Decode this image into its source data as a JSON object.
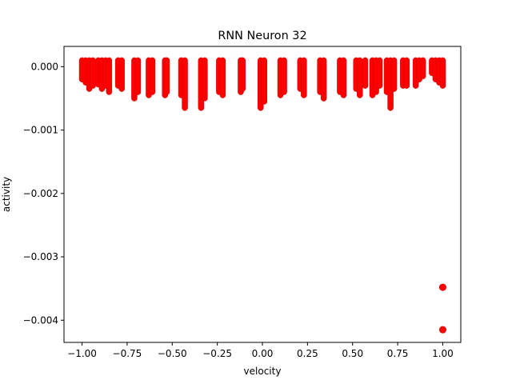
{
  "chart_data": {
    "type": "scatter",
    "title": "RNN Neuron 32",
    "xlabel": "velocity",
    "ylabel": "activity",
    "xlim": [
      -1.1,
      1.1
    ],
    "ylim": [
      -0.00435,
      0.00032
    ],
    "grid": false,
    "marker_color": "#ff0000",
    "x_ticks": [
      -1.0,
      -0.75,
      -0.5,
      -0.25,
      0.0,
      0.25,
      0.5,
      0.75,
      1.0
    ],
    "x_tick_labels": [
      "−1.00",
      "−0.75",
      "−0.50",
      "−0.25",
      "0.00",
      "0.25",
      "0.50",
      "0.75",
      "1.00"
    ],
    "y_ticks": [
      0.0,
      -0.001,
      -0.002,
      -0.003,
      -0.004
    ],
    "y_tick_labels": [
      "0.000",
      "−0.001",
      "−0.002",
      "−0.003",
      "−0.004"
    ],
    "columns": [
      {
        "x": -1.0,
        "y_top": 0.0001,
        "y_bottom": -0.0002
      },
      {
        "x": -0.98,
        "y_top": 0.0001,
        "y_bottom": -0.00025
      },
      {
        "x": -0.96,
        "y_top": 0.0001,
        "y_bottom": -0.00035
      },
      {
        "x": -0.94,
        "y_top": 0.0001,
        "y_bottom": -0.0003
      },
      {
        "x": -0.91,
        "y_top": 0.0001,
        "y_bottom": -0.00028
      },
      {
        "x": -0.89,
        "y_top": 0.0001,
        "y_bottom": -0.00035
      },
      {
        "x": -0.87,
        "y_top": 0.0001,
        "y_bottom": -0.0003
      },
      {
        "x": -0.85,
        "y_top": 0.0001,
        "y_bottom": -0.0004
      },
      {
        "x": -0.8,
        "y_top": 0.0001,
        "y_bottom": -0.0003
      },
      {
        "x": -0.78,
        "y_top": 0.0001,
        "y_bottom": -0.00035
      },
      {
        "x": -0.71,
        "y_top": 0.0001,
        "y_bottom": -0.0005
      },
      {
        "x": -0.69,
        "y_top": 0.0001,
        "y_bottom": -0.0004
      },
      {
        "x": -0.63,
        "y_top": 0.0001,
        "y_bottom": -0.00045
      },
      {
        "x": -0.61,
        "y_top": 0.0001,
        "y_bottom": -0.0004
      },
      {
        "x": -0.54,
        "y_top": 0.0001,
        "y_bottom": -0.00045
      },
      {
        "x": -0.53,
        "y_top": 0.0001,
        "y_bottom": -0.0004
      },
      {
        "x": -0.45,
        "y_top": 0.0001,
        "y_bottom": -0.00045
      },
      {
        "x": -0.43,
        "y_top": 0.0001,
        "y_bottom": -0.00065
      },
      {
        "x": -0.34,
        "y_top": 0.0001,
        "y_bottom": -0.00065
      },
      {
        "x": -0.32,
        "y_top": 0.0001,
        "y_bottom": -0.0005
      },
      {
        "x": -0.24,
        "y_top": 0.0001,
        "y_bottom": -0.0004
      },
      {
        "x": -0.22,
        "y_top": 0.0001,
        "y_bottom": -0.00045
      },
      {
        "x": -0.12,
        "y_top": 0.0001,
        "y_bottom": -0.0004
      },
      {
        "x": -0.11,
        "y_top": 0.0001,
        "y_bottom": -0.00035
      },
      {
        "x": -0.01,
        "y_top": 0.0001,
        "y_bottom": -0.00065
      },
      {
        "x": 0.01,
        "y_top": 0.0001,
        "y_bottom": -0.00055
      },
      {
        "x": 0.1,
        "y_top": 0.0001,
        "y_bottom": -0.00045
      },
      {
        "x": 0.12,
        "y_top": 0.0001,
        "y_bottom": -0.0004
      },
      {
        "x": 0.21,
        "y_top": 0.0001,
        "y_bottom": -0.00035
      },
      {
        "x": 0.23,
        "y_top": 0.0001,
        "y_bottom": -0.00045
      },
      {
        "x": 0.32,
        "y_top": 0.0001,
        "y_bottom": -0.0004
      },
      {
        "x": 0.34,
        "y_top": 0.0001,
        "y_bottom": -0.0005
      },
      {
        "x": 0.43,
        "y_top": 0.0001,
        "y_bottom": -0.0004
      },
      {
        "x": 0.45,
        "y_top": 0.0001,
        "y_bottom": -0.00045
      },
      {
        "x": 0.52,
        "y_top": 0.0001,
        "y_bottom": -0.00035
      },
      {
        "x": 0.54,
        "y_top": 0.0001,
        "y_bottom": -0.00045
      },
      {
        "x": 0.57,
        "y_top": 0.0001,
        "y_bottom": -0.0003
      },
      {
        "x": 0.61,
        "y_top": 0.0001,
        "y_bottom": -0.00045
      },
      {
        "x": 0.63,
        "y_top": 0.0001,
        "y_bottom": -0.0004
      },
      {
        "x": 0.65,
        "y_top": 0.0001,
        "y_bottom": -0.0003
      },
      {
        "x": 0.69,
        "y_top": 0.0001,
        "y_bottom": -0.0004
      },
      {
        "x": 0.71,
        "y_top": 0.0001,
        "y_bottom": -0.00065
      },
      {
        "x": 0.73,
        "y_top": 0.0001,
        "y_bottom": -0.00035
      },
      {
        "x": 0.78,
        "y_top": 0.0001,
        "y_bottom": -0.0003
      },
      {
        "x": 0.8,
        "y_top": 0.0001,
        "y_bottom": -0.0003
      },
      {
        "x": 0.85,
        "y_top": 0.0001,
        "y_bottom": -0.0003
      },
      {
        "x": 0.87,
        "y_top": 0.0001,
        "y_bottom": -0.0002
      },
      {
        "x": 0.89,
        "y_top": 0.0001,
        "y_bottom": -0.00015
      },
      {
        "x": 0.94,
        "y_top": 0.0001,
        "y_bottom": -0.0001
      },
      {
        "x": 0.96,
        "y_top": 0.0001,
        "y_bottom": -0.0002
      },
      {
        "x": 0.98,
        "y_top": 0.0001,
        "y_bottom": -0.00025
      },
      {
        "x": 1.0,
        "y_top": 0.0001,
        "y_bottom": -0.0003
      }
    ],
    "outliers": [
      {
        "x": 1.0,
        "y": -0.00348
      },
      {
        "x": 1.0,
        "y": -0.00415
      }
    ]
  }
}
